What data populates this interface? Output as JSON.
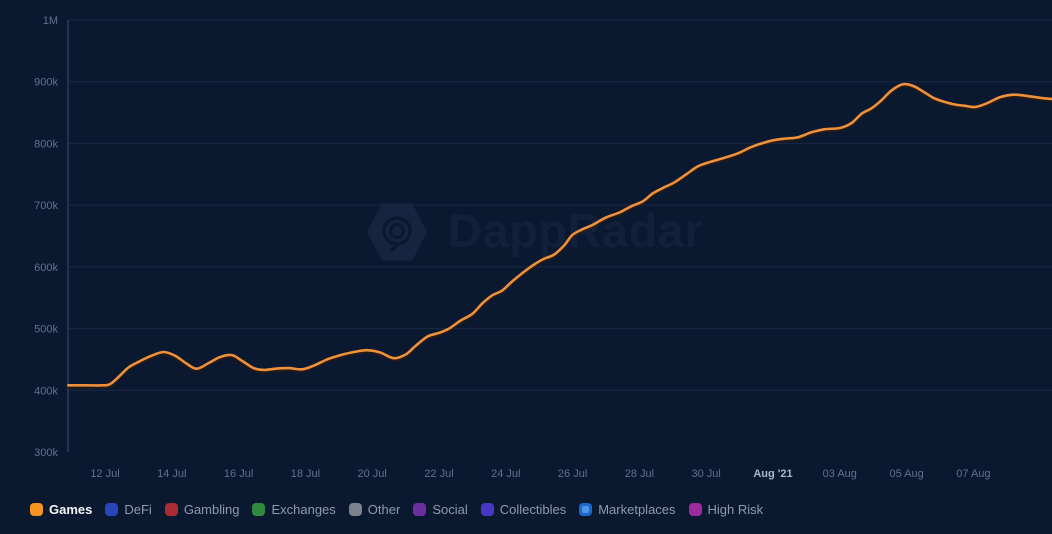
{
  "watermark": {
    "text": "DappRadar",
    "logo_icon": "dappradar-hexagon-spiral-icon"
  },
  "chart_data": {
    "type": "line",
    "title": "",
    "xlabel": "",
    "ylabel": "",
    "value_unit": "users (thousands)",
    "x_unit": "days since 10 Jul 2021",
    "x_range_t": [
      0.6,
      30.6
    ],
    "y_range_k": [
      300,
      1000
    ],
    "grid": "horizontal",
    "legend_position": "bottom-left",
    "y_ticks": [
      {
        "v": 1000,
        "label": "1M"
      },
      {
        "v": 900,
        "label": "900k"
      },
      {
        "v": 800,
        "label": "800k"
      },
      {
        "v": 700,
        "label": "700k"
      },
      {
        "v": 600,
        "label": "600k"
      },
      {
        "v": 500,
        "label": "500k"
      },
      {
        "v": 400,
        "label": "400k"
      },
      {
        "v": 300,
        "label": "300k"
      }
    ],
    "x_ticks": [
      {
        "t": 2,
        "label": "12 Jul",
        "bold": false
      },
      {
        "t": 4,
        "label": "14 Jul",
        "bold": false
      },
      {
        "t": 6,
        "label": "16 Jul",
        "bold": false
      },
      {
        "t": 8,
        "label": "18 Jul",
        "bold": false
      },
      {
        "t": 10,
        "label": "20 Jul",
        "bold": false
      },
      {
        "t": 12,
        "label": "22 Jul",
        "bold": false
      },
      {
        "t": 14,
        "label": "24 Jul",
        "bold": false
      },
      {
        "t": 16,
        "label": "26 Jul",
        "bold": false
      },
      {
        "t": 18,
        "label": "28 Jul",
        "bold": false
      },
      {
        "t": 20,
        "label": "30 Jul",
        "bold": false
      },
      {
        "t": 22,
        "label": "Aug '21",
        "bold": true
      },
      {
        "t": 24,
        "label": "03 Aug",
        "bold": false
      },
      {
        "t": 26,
        "label": "05 Aug",
        "bold": false
      },
      {
        "t": 28,
        "label": "07 Aug",
        "bold": false
      }
    ],
    "series": [
      {
        "name": "Games",
        "color": "#ef913b",
        "shadow_color": "#3a1d06",
        "points_t_valueK": [
          [
            0.9,
            408
          ],
          [
            1.4,
            408
          ],
          [
            1.9,
            408
          ],
          [
            2.15,
            410
          ],
          [
            2.45,
            424
          ],
          [
            2.7,
            437
          ],
          [
            3.0,
            446
          ],
          [
            3.35,
            455
          ],
          [
            3.75,
            462
          ],
          [
            4.1,
            456
          ],
          [
            4.45,
            443
          ],
          [
            4.75,
            435
          ],
          [
            5.1,
            444
          ],
          [
            5.45,
            454
          ],
          [
            5.8,
            457
          ],
          [
            6.1,
            448
          ],
          [
            6.45,
            436
          ],
          [
            6.75,
            433
          ],
          [
            7.1,
            435
          ],
          [
            7.5,
            436
          ],
          [
            7.9,
            434
          ],
          [
            8.25,
            440
          ],
          [
            8.65,
            450
          ],
          [
            9.05,
            457
          ],
          [
            9.45,
            462
          ],
          [
            9.85,
            465
          ],
          [
            10.25,
            461
          ],
          [
            10.65,
            452
          ],
          [
            11.0,
            458
          ],
          [
            11.3,
            472
          ],
          [
            11.65,
            487
          ],
          [
            12.0,
            493
          ],
          [
            12.3,
            500
          ],
          [
            12.65,
            513
          ],
          [
            13.0,
            524
          ],
          [
            13.3,
            541
          ],
          [
            13.6,
            554
          ],
          [
            13.9,
            562
          ],
          [
            14.2,
            577
          ],
          [
            14.5,
            590
          ],
          [
            14.8,
            602
          ],
          [
            15.1,
            612
          ],
          [
            15.45,
            620
          ],
          [
            15.75,
            635
          ],
          [
            16.0,
            652
          ],
          [
            16.3,
            661
          ],
          [
            16.6,
            668
          ],
          [
            17.0,
            680
          ],
          [
            17.4,
            688
          ],
          [
            17.75,
            698
          ],
          [
            18.1,
            706
          ],
          [
            18.4,
            719
          ],
          [
            18.75,
            729
          ],
          [
            19.05,
            737
          ],
          [
            19.4,
            750
          ],
          [
            19.75,
            763
          ],
          [
            20.05,
            769
          ],
          [
            20.5,
            776
          ],
          [
            20.95,
            784
          ],
          [
            21.3,
            793
          ],
          [
            21.6,
            799
          ],
          [
            22.0,
            805
          ],
          [
            22.4,
            808
          ],
          [
            22.75,
            810
          ],
          [
            23.15,
            818
          ],
          [
            23.55,
            823
          ],
          [
            24.0,
            825
          ],
          [
            24.35,
            833
          ],
          [
            24.65,
            848
          ],
          [
            24.95,
            857
          ],
          [
            25.25,
            870
          ],
          [
            25.55,
            886
          ],
          [
            25.9,
            896
          ],
          [
            26.2,
            893
          ],
          [
            26.5,
            884
          ],
          [
            26.8,
            874
          ],
          [
            27.1,
            868
          ],
          [
            27.45,
            863
          ],
          [
            27.75,
            861
          ],
          [
            28.05,
            859
          ],
          [
            28.4,
            865
          ],
          [
            28.8,
            875
          ],
          [
            29.2,
            879
          ],
          [
            29.6,
            877
          ],
          [
            30.0,
            874
          ],
          [
            30.35,
            872
          ]
        ]
      }
    ]
  },
  "legend": {
    "items": [
      {
        "label": "Games",
        "color": "#f5941f",
        "active": true
      },
      {
        "label": "DeFi",
        "color": "#2746bb",
        "active": false
      },
      {
        "label": "Gambling",
        "color": "#aa2b31",
        "active": false
      },
      {
        "label": "Exchanges",
        "color": "#2f8a3e",
        "active": false
      },
      {
        "label": "Other",
        "color": "#7b828e",
        "active": false
      },
      {
        "label": "Social",
        "color": "#6c2fa0",
        "active": false
      },
      {
        "label": "Collectibles",
        "color": "#4438c4",
        "active": false
      },
      {
        "label": "Marketplaces",
        "color": "#1c67c9",
        "inner_color": "#4f97e4",
        "active": false
      },
      {
        "label": "High Risk",
        "color": "#9c2b9e",
        "active": false
      }
    ]
  },
  "theme": {
    "background": "#0a1830",
    "gridline": "#1b2945",
    "axis_line": "#2b3a5e",
    "tick_text": "#64718c",
    "tick_text_bold": "#aab7cb"
  }
}
